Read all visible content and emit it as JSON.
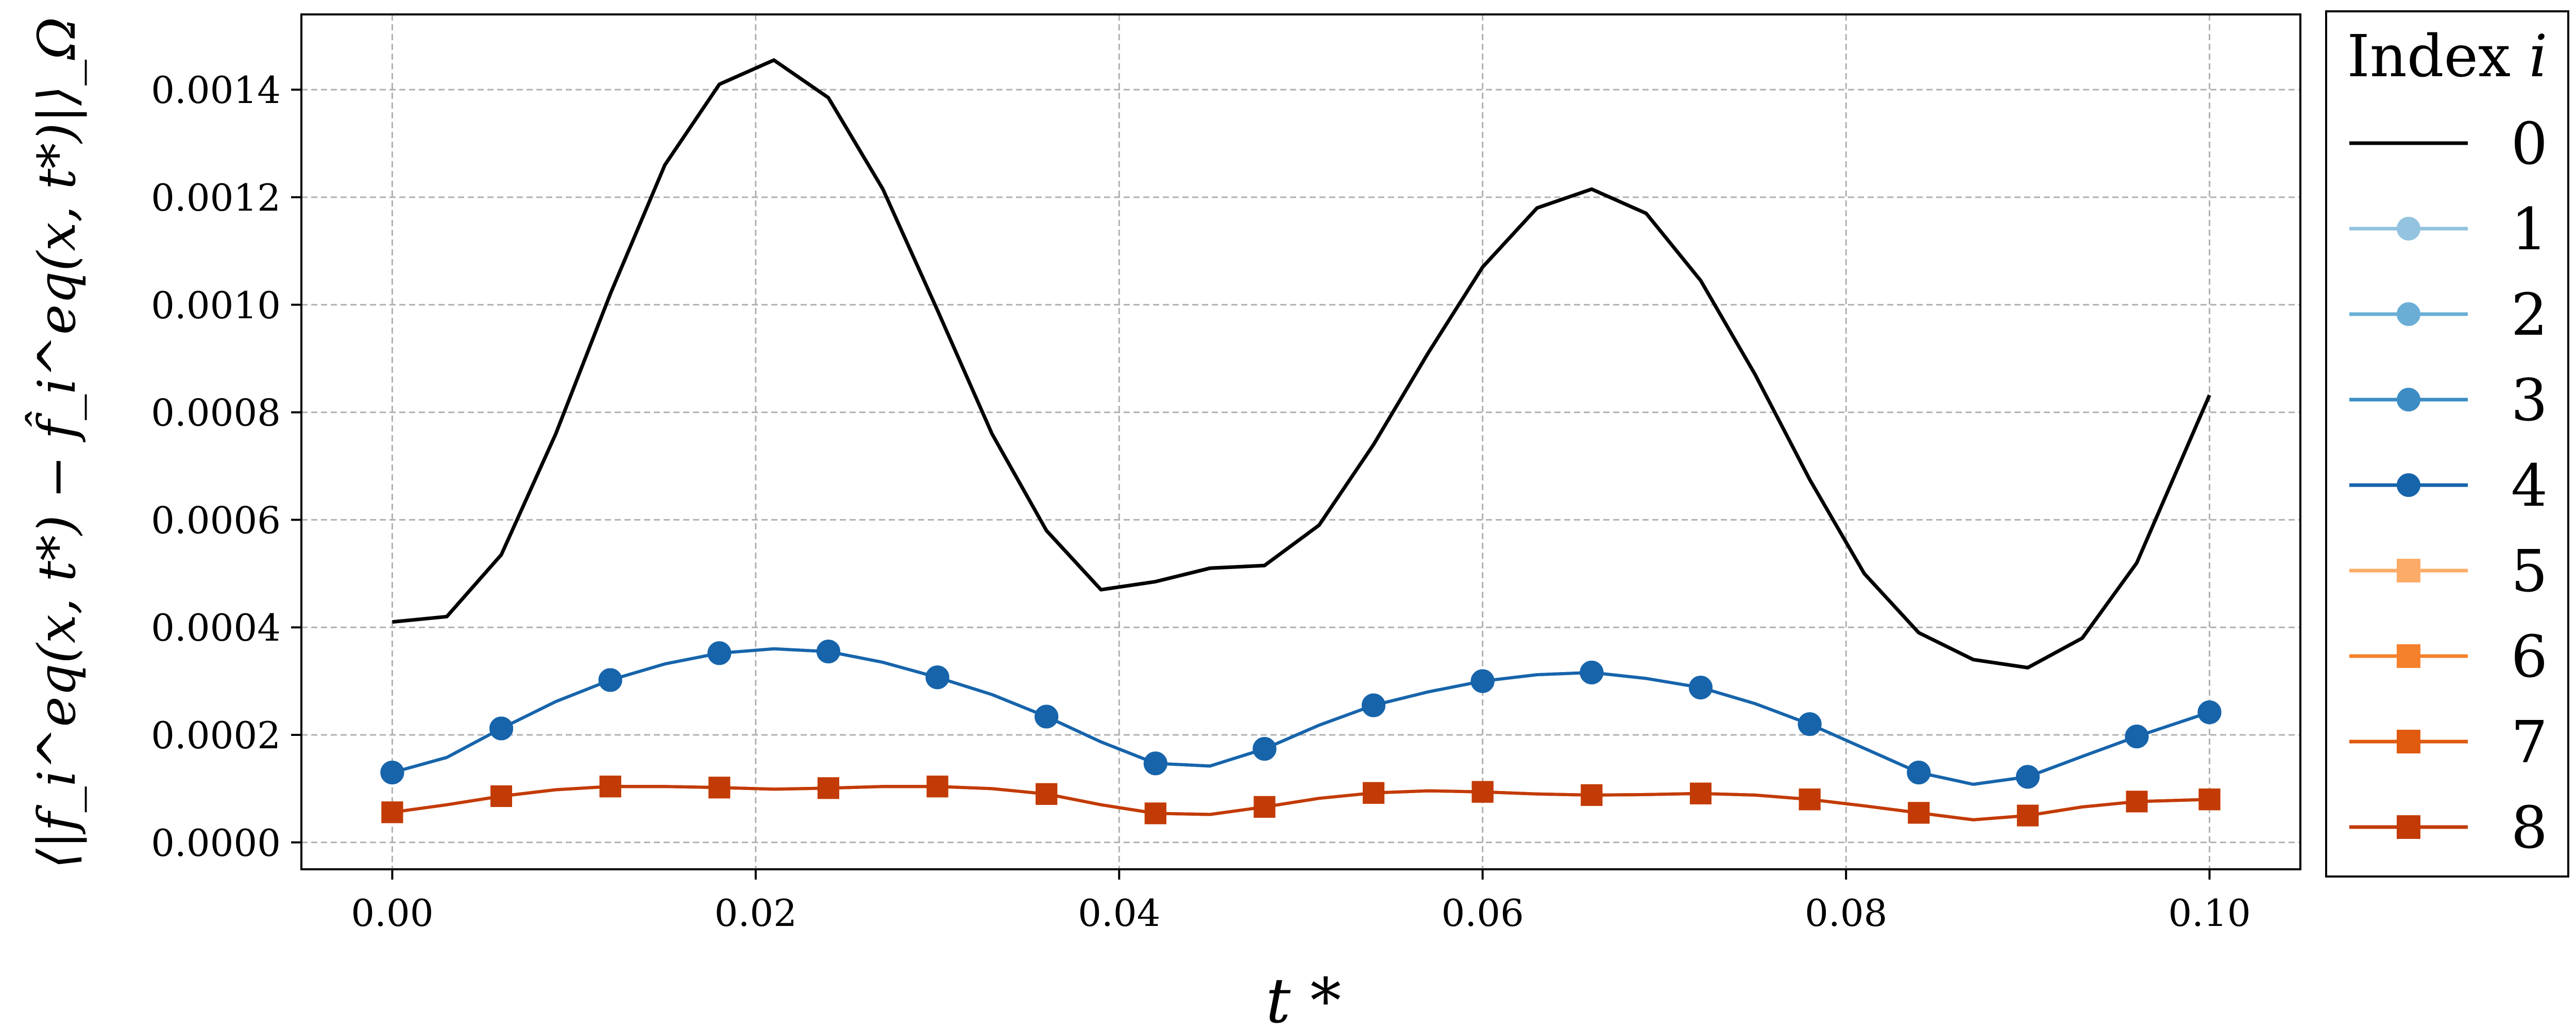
{
  "chart_data": {
    "type": "line",
    "title": "",
    "xlabel": "t *",
    "ylabel": "⟨|f_i^eq(x, t*) − f̂_i^eq(x, t*)|⟩_Ω",
    "xlim": [
      -0.005,
      0.105
    ],
    "ylim": [
      -5e-05,
      0.00154
    ],
    "xticks": [
      0.0,
      0.02,
      0.04,
      0.06,
      0.08,
      0.1
    ],
    "xtick_labels": [
      "0.00",
      "0.02",
      "0.04",
      "0.06",
      "0.08",
      "0.10"
    ],
    "yticks": [
      0.0,
      0.0002,
      0.0004,
      0.0006,
      0.0008,
      0.001,
      0.0012,
      0.0014
    ],
    "ytick_labels": [
      "0.0000",
      "0.0002",
      "0.0004",
      "0.0006",
      "0.0008",
      "0.0010",
      "0.0012",
      "0.0014"
    ],
    "grid": true,
    "legend": {
      "title": "Index i",
      "title_base": "Index",
      "title_var": "i",
      "placement": "outside-right"
    },
    "x": [
      0.0,
      0.003,
      0.006,
      0.009,
      0.012,
      0.015,
      0.018,
      0.021,
      0.024,
      0.027,
      0.03,
      0.033,
      0.036,
      0.039,
      0.042,
      0.045,
      0.048,
      0.051,
      0.054,
      0.057,
      0.06,
      0.063,
      0.066,
      0.069,
      0.072,
      0.075,
      0.078,
      0.081,
      0.084,
      0.087,
      0.09,
      0.093,
      0.096,
      0.1
    ],
    "series": [
      {
        "name": "0",
        "color": "#000000",
        "marker": "none",
        "values": [
          0.00041,
          0.00042,
          0.000535,
          0.00076,
          0.00102,
          0.00126,
          0.00141,
          0.001455,
          0.001385,
          0.001215,
          0.00099,
          0.00076,
          0.00058,
          0.00047,
          0.000485,
          0.00051,
          0.000515,
          0.00059,
          0.00074,
          0.00091,
          0.00107,
          0.00118,
          0.001215,
          0.00117,
          0.001045,
          0.00087,
          0.000675,
          0.0005,
          0.00039,
          0.00034,
          0.000325,
          0.00038,
          0.00052,
          0.000832
        ]
      },
      {
        "name": "1",
        "color": "#93c3df",
        "marker": "circle",
        "values": [
          0.00013,
          0.000158,
          0.000212,
          0.000262,
          0.000302,
          0.000332,
          0.000352,
          0.00036,
          0.000355,
          0.000335,
          0.000307,
          0.000275,
          0.000234,
          0.000187,
          0.000147,
          0.000142,
          0.000174,
          0.000218,
          0.000255,
          0.00028,
          0.0003,
          0.000312,
          0.000316,
          0.000305,
          0.000288,
          0.000258,
          0.00022,
          0.000175,
          0.00013,
          0.000108,
          0.000122,
          0.00016,
          0.000197,
          0.000242
        ]
      },
      {
        "name": "2",
        "color": "#6aaed6",
        "marker": "circle",
        "values": [
          0.00013,
          0.000158,
          0.000212,
          0.000262,
          0.000302,
          0.000332,
          0.000352,
          0.00036,
          0.000355,
          0.000335,
          0.000307,
          0.000275,
          0.000234,
          0.000187,
          0.000147,
          0.000142,
          0.000174,
          0.000218,
          0.000255,
          0.00028,
          0.0003,
          0.000312,
          0.000316,
          0.000305,
          0.000288,
          0.000258,
          0.00022,
          0.000175,
          0.00013,
          0.000108,
          0.000122,
          0.00016,
          0.000197,
          0.000242
        ]
      },
      {
        "name": "3",
        "color": "#3d8dc4",
        "marker": "circle",
        "values": [
          0.00013,
          0.000158,
          0.000212,
          0.000262,
          0.000302,
          0.000332,
          0.000352,
          0.00036,
          0.000355,
          0.000335,
          0.000307,
          0.000275,
          0.000234,
          0.000187,
          0.000147,
          0.000142,
          0.000174,
          0.000218,
          0.000255,
          0.00028,
          0.0003,
          0.000312,
          0.000316,
          0.000305,
          0.000288,
          0.000258,
          0.00022,
          0.000175,
          0.00013,
          0.000108,
          0.000122,
          0.00016,
          0.000197,
          0.000242
        ]
      },
      {
        "name": "4",
        "color": "#1764ab",
        "marker": "circle",
        "values": [
          0.00013,
          0.000158,
          0.000212,
          0.000262,
          0.000302,
          0.000332,
          0.000352,
          0.00036,
          0.000355,
          0.000335,
          0.000307,
          0.000275,
          0.000234,
          0.000187,
          0.000147,
          0.000142,
          0.000174,
          0.000218,
          0.000255,
          0.00028,
          0.0003,
          0.000312,
          0.000316,
          0.000305,
          0.000288,
          0.000258,
          0.00022,
          0.000175,
          0.00013,
          0.000108,
          0.000122,
          0.00016,
          0.000197,
          0.000242
        ]
      },
      {
        "name": "5",
        "color": "#fdac67",
        "marker": "square",
        "values": [
          5.6e-05,
          7e-05,
          8.6e-05,
          9.8e-05,
          0.000104,
          0.000104,
          0.000102,
          9.9e-05,
          0.000101,
          0.000104,
          0.000104,
          0.0001,
          9e-05,
          7e-05,
          5.4e-05,
          5.2e-05,
          6.6e-05,
          8.2e-05,
          9.2e-05,
          9.6e-05,
          9.4e-05,
          9e-05,
          8.8e-05,
          8.9e-05,
          9.1e-05,
          8.8e-05,
          8e-05,
          6.8e-05,
          5.5e-05,
          4.2e-05,
          5e-05,
          6.6e-05,
          7.6e-05,
          8e-05
        ]
      },
      {
        "name": "6",
        "color": "#f6812c",
        "marker": "square",
        "values": [
          5.6e-05,
          7e-05,
          8.6e-05,
          9.8e-05,
          0.000104,
          0.000104,
          0.000102,
          9.9e-05,
          0.000101,
          0.000104,
          0.000104,
          0.0001,
          9e-05,
          7e-05,
          5.4e-05,
          5.2e-05,
          6.6e-05,
          8.2e-05,
          9.2e-05,
          9.6e-05,
          9.4e-05,
          9e-05,
          8.8e-05,
          8.9e-05,
          9.1e-05,
          8.8e-05,
          8e-05,
          6.8e-05,
          5.5e-05,
          4.2e-05,
          5e-05,
          6.6e-05,
          7.6e-05,
          8e-05
        ]
      },
      {
        "name": "7",
        "color": "#e05a10",
        "marker": "square",
        "values": [
          5.6e-05,
          7e-05,
          8.6e-05,
          9.8e-05,
          0.000104,
          0.000104,
          0.000102,
          9.9e-05,
          0.000101,
          0.000104,
          0.000104,
          0.0001,
          9e-05,
          7e-05,
          5.4e-05,
          5.2e-05,
          6.6e-05,
          8.2e-05,
          9.2e-05,
          9.6e-05,
          9.4e-05,
          9e-05,
          8.8e-05,
          8.9e-05,
          9.1e-05,
          8.8e-05,
          8e-05,
          6.8e-05,
          5.5e-05,
          4.2e-05,
          5e-05,
          6.6e-05,
          7.6e-05,
          8e-05
        ]
      },
      {
        "name": "8",
        "color": "#c23b06",
        "marker": "square",
        "values": [
          5.6e-05,
          7e-05,
          8.6e-05,
          9.8e-05,
          0.000104,
          0.000104,
          0.000102,
          9.9e-05,
          0.000101,
          0.000104,
          0.000104,
          0.0001,
          9e-05,
          7e-05,
          5.4e-05,
          5.2e-05,
          6.6e-05,
          8.2e-05,
          9.2e-05,
          9.6e-05,
          9.4e-05,
          9e-05,
          8.8e-05,
          8.9e-05,
          9.1e-05,
          8.8e-05,
          8e-05,
          6.8e-05,
          5.5e-05,
          4.2e-05,
          5e-05,
          6.6e-05,
          7.6e-05,
          8e-05
        ]
      }
    ]
  }
}
